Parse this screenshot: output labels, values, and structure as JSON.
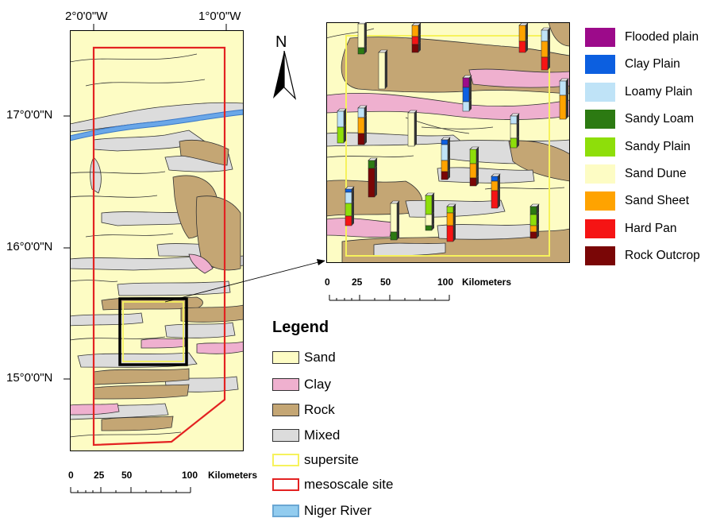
{
  "main_map": {
    "coords": {
      "lon_west": "2°0'0\"W",
      "lon_east": "1°0'0\"W",
      "lat_17": "17°0'0\"N",
      "lat_16": "16°0'0\"N",
      "lat_15": "15°0'0\"N"
    },
    "scale": {
      "n0": "0",
      "n25": "25",
      "n50": "50",
      "n100": "100",
      "unit": "Kilometers"
    }
  },
  "inset_map": {
    "scale": {
      "n0": "0",
      "n25": "25",
      "n50": "50",
      "n100": "100",
      "unit": "Kilometers"
    }
  },
  "north_arrow": {
    "label": "N"
  },
  "legend": {
    "title": "Legend",
    "items": [
      {
        "label": "Sand",
        "fill": "#fdfcc4",
        "stroke": "#333333"
      },
      {
        "label": "Clay",
        "fill": "#efb0cf",
        "stroke": "#333333"
      },
      {
        "label": "Rock",
        "fill": "#c4a674",
        "stroke": "#333333"
      },
      {
        "label": "Mixed",
        "fill": "#dcdcdc",
        "stroke": "#333333"
      },
      {
        "label": "supersite",
        "fill": "#ffffff",
        "stroke": "#f6f25c"
      },
      {
        "label": "mesoscale site",
        "fill": "#ffffff",
        "stroke": "#e32222"
      },
      {
        "label": "Niger River",
        "fill": "#92ccef",
        "stroke": "#6aa7d3"
      }
    ]
  },
  "class_legend": [
    {
      "label": "Flooded plain",
      "color": "#9c0a8a"
    },
    {
      "label": "Clay Plain",
      "color": "#0c5fe0"
    },
    {
      "label": "Loamy Plain",
      "color": "#bfe3f7"
    },
    {
      "label": "Sandy Loam",
      "color": "#2c7a12"
    },
    {
      "label": "Sandy Plain",
      "color": "#8ede0a"
    },
    {
      "label": "Sand Dune",
      "color": "#fdfcc4"
    },
    {
      "label": "Sand Sheet",
      "color": "#ffa300"
    },
    {
      "label": "Hard Pan",
      "color": "#f51414"
    },
    {
      "label": "Rock Outcrop",
      "color": "#7a0606"
    }
  ]
}
